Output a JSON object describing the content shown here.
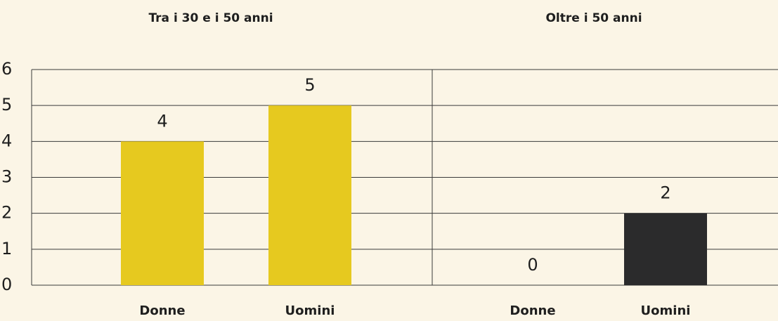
{
  "chart_data": [
    {
      "type": "bar",
      "title": "Tra i 30 e i 50 anni",
      "categories": [
        "Donne",
        "Uomini"
      ],
      "values": [
        4,
        5
      ],
      "colors": [
        "#e6c91f",
        "#e6c91f"
      ],
      "ylim": [
        0,
        6
      ],
      "yticks": [
        0,
        1,
        2,
        3,
        4,
        5,
        6
      ],
      "grid": true
    },
    {
      "type": "bar",
      "title": "Oltre i 50 anni",
      "categories": [
        "Donne",
        "Uomini"
      ],
      "values": [
        0,
        2
      ],
      "colors": [
        "#2b2b2c",
        "#2b2b2c"
      ],
      "ylim": [
        0,
        6
      ],
      "yticks": [
        0,
        1,
        2,
        3,
        4,
        5,
        6
      ],
      "grid": true
    }
  ]
}
